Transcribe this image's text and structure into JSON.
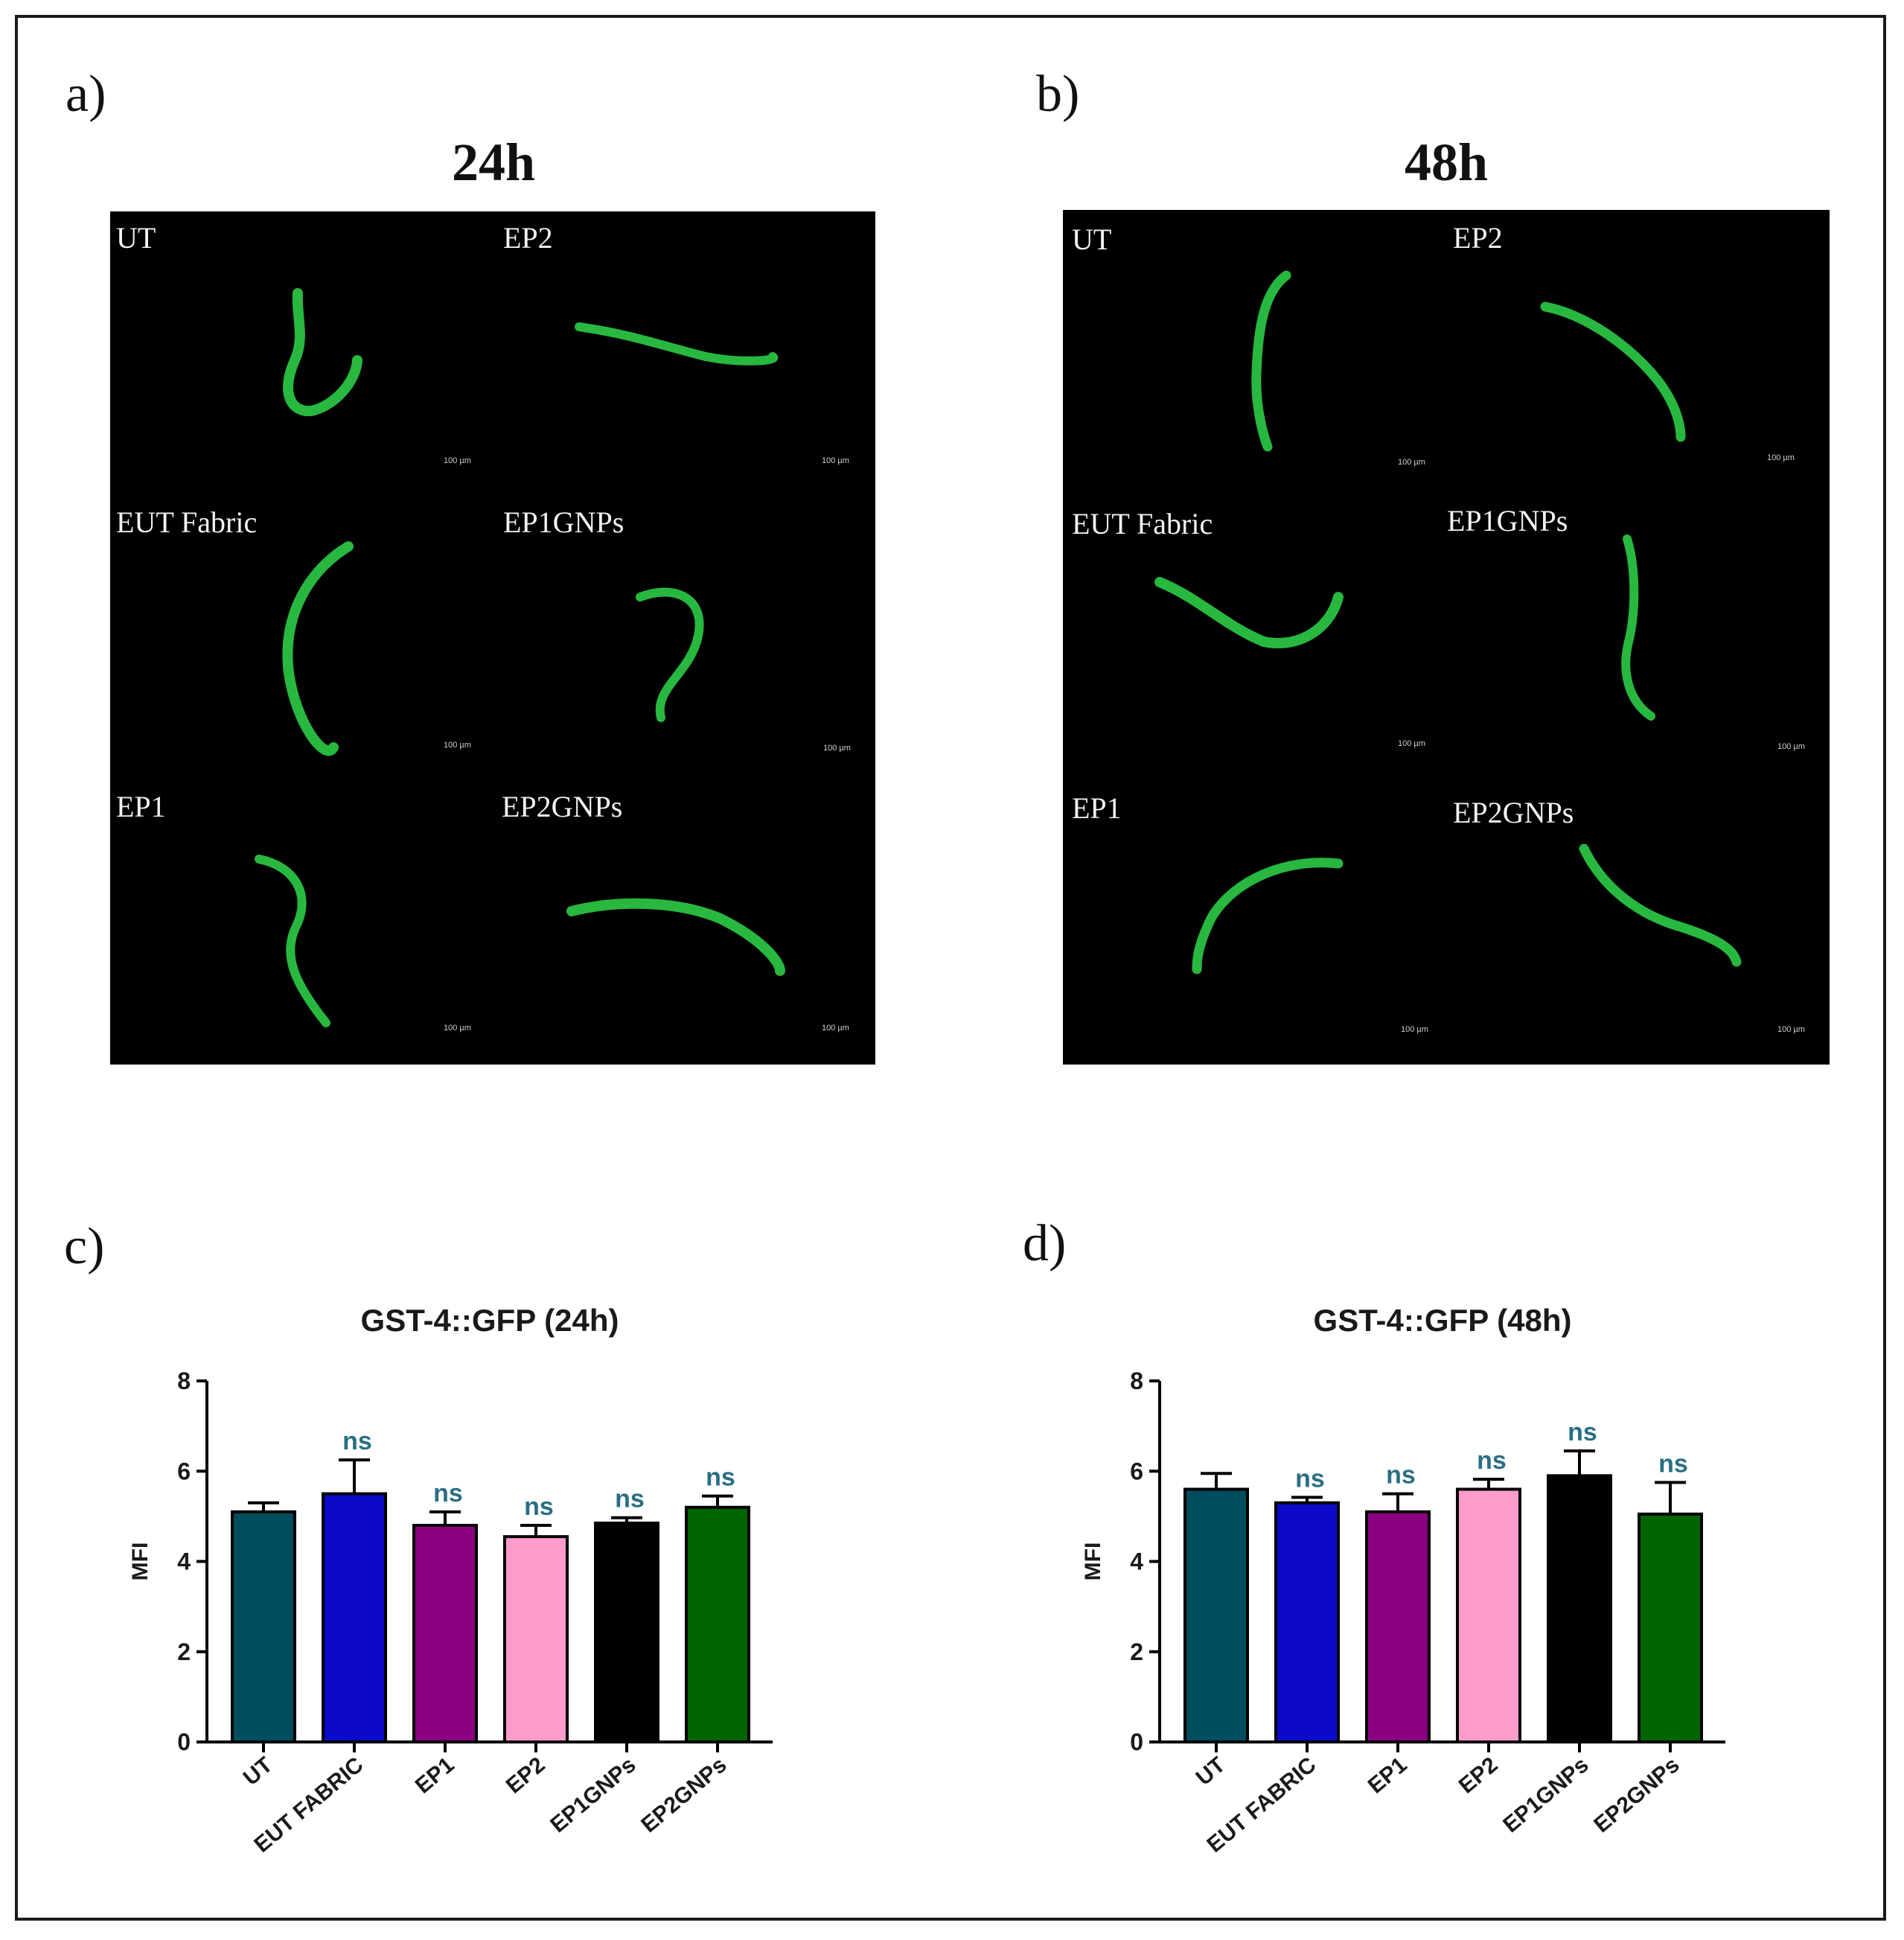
{
  "panels": {
    "a": {
      "letter": "a)",
      "time": "24h",
      "cells": [
        {
          "label": "UT",
          "scale": "100 µm"
        },
        {
          "label": "EP2",
          "scale": "100 µm"
        },
        {
          "label": "EUT Fabric",
          "scale": "100 µm"
        },
        {
          "label": "EP1GNPs",
          "scale": "100 µm"
        },
        {
          "label": "EP1",
          "scale": "100 µm"
        },
        {
          "label": "EP2GNPs",
          "scale": "100 µm"
        }
      ]
    },
    "b": {
      "letter": "b)",
      "time": "48h",
      "cells": [
        {
          "label": "UT",
          "scale": "100 µm"
        },
        {
          "label": "EP2",
          "scale": "100 µm"
        },
        {
          "label": "EUT Fabric",
          "scale": "100 µm"
        },
        {
          "label": "EP1GNPs",
          "scale": "100 µm"
        },
        {
          "label": "EP1",
          "scale": "100 µm"
        },
        {
          "label": "EP2GNPs",
          "scale": "100 µm"
        }
      ]
    },
    "c": {
      "letter": "c)"
    },
    "d": {
      "letter": "d)"
    }
  },
  "colors": {
    "UT": "#004d5e",
    "EUT FABRIC": "#0a0ac8",
    "EP1": "#8a0080",
    "EP2": "#ff9ccc",
    "EP1GNPs": "#000000",
    "EP2GNPs": "#006400",
    "annotation": "#2a6f84",
    "worm": "#2fd84a"
  },
  "chart_data": [
    {
      "type": "bar",
      "title": "GST-4::GFP (24h)",
      "xlabel": "",
      "ylabel": "MFI",
      "ylim": [
        0,
        8
      ],
      "yticks": [
        "0",
        "2",
        "4",
        "6",
        "8"
      ],
      "categories": [
        "UT",
        "EUT FABRIC",
        "EP1",
        "EP2",
        "EP1GNPs",
        "EP2GNPs"
      ],
      "values": [
        5.1,
        5.5,
        4.8,
        4.55,
        4.85,
        5.2
      ],
      "errors": [
        0.2,
        0.75,
        0.3,
        0.25,
        0.12,
        0.25
      ],
      "annotations": [
        "",
        "ns",
        "ns",
        "ns",
        "ns",
        "ns"
      ],
      "grid": false,
      "legend": "none"
    },
    {
      "type": "bar",
      "title": "GST-4::GFP (48h)",
      "xlabel": "",
      "ylabel": "MFI",
      "ylim": [
        0,
        8
      ],
      "yticks": [
        "0",
        "2",
        "4",
        "6",
        "8"
      ],
      "categories": [
        "UT",
        "EUT FABRIC",
        "EP1",
        "EP2",
        "EP1GNPs",
        "EP2GNPs"
      ],
      "values": [
        5.6,
        5.3,
        5.1,
        5.6,
        5.9,
        5.05
      ],
      "errors": [
        0.35,
        0.12,
        0.4,
        0.22,
        0.55,
        0.7
      ],
      "annotations": [
        "",
        "ns",
        "ns",
        "ns",
        "ns",
        "ns"
      ],
      "grid": false,
      "legend": "none"
    }
  ]
}
